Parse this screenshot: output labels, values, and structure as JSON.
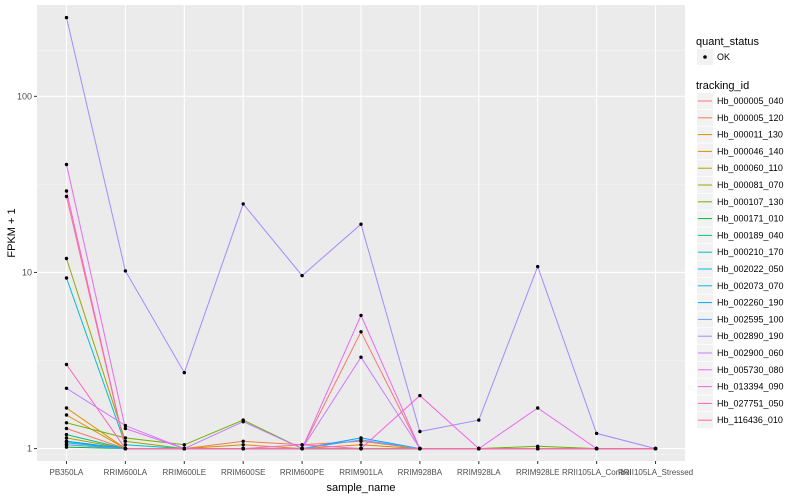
{
  "chart_data": {
    "type": "line",
    "title": "",
    "xlabel": "sample_name",
    "ylabel": "FPKM + 1",
    "y_scale": "log10",
    "ylim": [
      0.85,
      330
    ],
    "yticks": [
      1,
      10,
      100
    ],
    "yticklabels": [
      "1",
      "10",
      "100"
    ],
    "grid": true,
    "legend_position": "right",
    "categories": [
      "PB350LA",
      "RRIM600LA",
      "RRIM600LE",
      "RRIM600SE",
      "RRIM600PE",
      "RRIM901LA",
      "RRIM928BA",
      "RRIM928LA",
      "RRIM928LE",
      "RRII105LA_Control",
      "RRII105LA_Stressed"
    ],
    "point_legend": {
      "title": "quant_status",
      "items": [
        "OK"
      ]
    },
    "series_legend_title": "tracking_id",
    "series": [
      {
        "name": "Hb_000005_040",
        "color": "#F8766D",
        "values": [
          1.3,
          1.0,
          1.0,
          1.0,
          1.0,
          4.6,
          1.0,
          1.0,
          1.0,
          1.0,
          1.0
        ]
      },
      {
        "name": "Hb_000005_120",
        "color": "#F17E4F",
        "values": [
          1.05,
          1.0,
          1.0,
          1.1,
          1.05,
          1.1,
          1.0,
          1.0,
          1.0,
          1.0,
          1.0
        ]
      },
      {
        "name": "Hb_000011_130",
        "color": "#E58700",
        "values": [
          1.7,
          1.0,
          1.0,
          1.0,
          1.0,
          1.05,
          1.0,
          1.0,
          1.0,
          1.0,
          1.0
        ]
      },
      {
        "name": "Hb_000046_140",
        "color": "#D89000",
        "values": [
          1.55,
          1.0,
          1.0,
          1.05,
          1.0,
          1.0,
          1.0,
          1.0,
          1.0,
          1.0,
          1.0
        ]
      },
      {
        "name": "Hb_000060_110",
        "color": "#B79F00",
        "values": [
          1.15,
          1.0,
          1.0,
          1.0,
          1.0,
          1.0,
          1.0,
          1.0,
          1.0,
          1.0,
          1.0
        ]
      },
      {
        "name": "Hb_000081_070",
        "color": "#9AA500",
        "values": [
          12.0,
          1.1,
          1.0,
          1.0,
          1.0,
          1.0,
          1.0,
          1.0,
          1.0,
          1.0,
          1.0
        ]
      },
      {
        "name": "Hb_000107_130",
        "color": "#6BB100",
        "values": [
          1.4,
          1.15,
          1.05,
          1.45,
          1.0,
          1.0,
          1.0,
          1.0,
          1.03,
          1.0,
          1.0
        ]
      },
      {
        "name": "Hb_000171_010",
        "color": "#00BA38",
        "values": [
          1.02,
          1.0,
          1.0,
          1.0,
          1.0,
          1.0,
          1.0,
          1.0,
          1.0,
          1.0,
          1.0
        ]
      },
      {
        "name": "Hb_000189_040",
        "color": "#00C08B",
        "values": [
          1.2,
          1.0,
          1.0,
          1.0,
          1.0,
          1.0,
          1.0,
          1.0,
          1.0,
          1.0,
          1.0
        ]
      },
      {
        "name": "Hb_000210_170",
        "color": "#00BFC4",
        "values": [
          1.08,
          1.0,
          1.0,
          1.0,
          1.0,
          1.0,
          1.0,
          1.0,
          1.0,
          1.0,
          1.0
        ]
      },
      {
        "name": "Hb_002022_050",
        "color": "#00B4F0",
        "values": [
          1.1,
          1.0,
          1.0,
          1.0,
          1.0,
          1.0,
          1.0,
          1.0,
          1.0,
          1.0,
          1.0
        ]
      },
      {
        "name": "Hb_002073_070",
        "color": "#00BCD8",
        "values": [
          9.3,
          1.05,
          1.0,
          1.0,
          1.0,
          1.0,
          1.0,
          1.0,
          1.0,
          1.0,
          1.0
        ]
      },
      {
        "name": "Hb_002260_190",
        "color": "#00A5FF",
        "values": [
          1.1,
          1.0,
          1.0,
          1.0,
          1.0,
          1.15,
          1.0,
          1.0,
          1.0,
          1.0,
          1.0
        ]
      },
      {
        "name": "Hb_002595_100",
        "color": "#619CFF",
        "values": [
          1.05,
          1.0,
          1.0,
          1.0,
          1.0,
          1.12,
          1.0,
          1.0,
          1.0,
          1.0,
          1.0
        ]
      },
      {
        "name": "Hb_002890_190",
        "color": "#A58AFF",
        "values": [
          280,
          10.2,
          2.7,
          24.5,
          9.6,
          18.8,
          1.25,
          1.45,
          10.8,
          1.22,
          1.0
        ]
      },
      {
        "name": "Hb_002900_060",
        "color": "#C77CFF",
        "values": [
          2.2,
          1.35,
          1.0,
          1.42,
          1.0,
          3.3,
          1.0,
          1.0,
          1.0,
          1.0,
          1.0
        ]
      },
      {
        "name": "Hb_005730_080",
        "color": "#E76BF3",
        "values": [
          41.0,
          1.3,
          1.0,
          1.0,
          1.0,
          5.7,
          1.0,
          1.0,
          1.7,
          1.0,
          1.0
        ]
      },
      {
        "name": "Hb_013394_090",
        "color": "#F564E3",
        "values": [
          29.0,
          1.0,
          1.0,
          1.0,
          1.05,
          1.0,
          2.0,
          1.0,
          1.0,
          1.0,
          1.0
        ]
      },
      {
        "name": "Hb_027751_050",
        "color": "#FF62BC",
        "values": [
          3.0,
          1.0,
          1.0,
          1.0,
          1.0,
          1.0,
          1.0,
          1.0,
          1.0,
          1.0,
          1.0
        ]
      },
      {
        "name": "Hb_116436_010",
        "color": "#FF6C91",
        "values": [
          27.0,
          1.0,
          1.0,
          1.0,
          1.0,
          1.0,
          1.0,
          1.0,
          1.0,
          1.0,
          1.0
        ]
      }
    ]
  }
}
